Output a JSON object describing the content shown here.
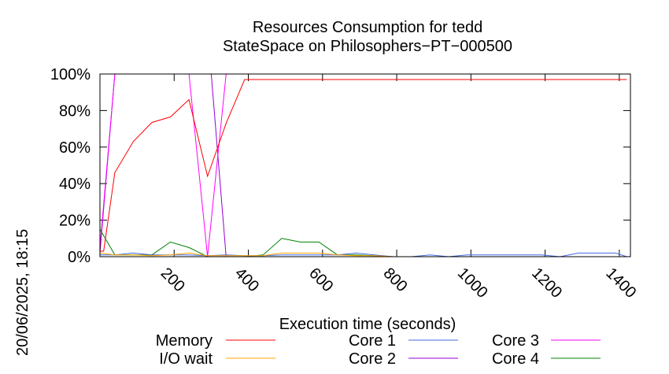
{
  "chart_data": {
    "type": "line",
    "title": "Resources Consumption for tedd",
    "subtitle": "StateSpace on Philosophers−PT−000500",
    "xlabel": "Execution time (seconds)",
    "ylabel": "",
    "side_label": "20/06/2025, 18:15",
    "xlim": [
      0,
      1430
    ],
    "ylim": [
      0,
      100
    ],
    "x_ticks": [
      200,
      400,
      600,
      800,
      1000,
      1200,
      1400
    ],
    "y_ticks": [
      0,
      20,
      40,
      60,
      80,
      100
    ],
    "y_tick_labels": [
      "0%",
      "20%",
      "40%",
      "60%",
      "80%",
      "100%"
    ],
    "grid": false,
    "legend_position": "bottom",
    "series": [
      {
        "name": "Memory",
        "color": "#ff0000",
        "x": [
          0,
          10,
          40,
          90,
          140,
          190,
          240,
          290,
          340,
          390,
          1420
        ],
        "y": [
          3,
          3,
          46,
          63,
          73.5,
          76.5,
          86,
          44,
          73,
          97,
          97
        ]
      },
      {
        "name": "I/O wait",
        "color": "#ffa500",
        "x": [
          0,
          40,
          90,
          140,
          190,
          240,
          290,
          340,
          390,
          440,
          490,
          540,
          590,
          640,
          690,
          740,
          790,
          840,
          890,
          940,
          990,
          1040,
          1090,
          1140,
          1190,
          1240,
          1290,
          1340,
          1390,
          1420
        ],
        "y": [
          2,
          1,
          1,
          0.5,
          1,
          2,
          0.5,
          0.5,
          0.5,
          0.5,
          2,
          2,
          2,
          1,
          0.5,
          0.5,
          0,
          0,
          0,
          0,
          0,
          0,
          0,
          0,
          0,
          0,
          0,
          0,
          0,
          0
        ]
      },
      {
        "name": "Core 1",
        "color": "#4169e1",
        "x": [
          0,
          40,
          90,
          140,
          190,
          240,
          290,
          340,
          390,
          440,
          490,
          540,
          590,
          640,
          690,
          740,
          790,
          840,
          890,
          940,
          990,
          1040,
          1090,
          1140,
          1190,
          1240,
          1290,
          1340,
          1390,
          1420
        ],
        "y": [
          1,
          1,
          2,
          1,
          1,
          1,
          0.5,
          1,
          0.5,
          0.5,
          1,
          1,
          1,
          1,
          2,
          1,
          0,
          0,
          1,
          0,
          1,
          1,
          1,
          1,
          1,
          0,
          2,
          2,
          2,
          0
        ]
      },
      {
        "name": "Core 2",
        "color": "#9400d3",
        "x": [
          0,
          40,
          90,
          140,
          190,
          240,
          290,
          300,
          340,
          390,
          440,
          490,
          540,
          590,
          640,
          690,
          740,
          790,
          840,
          890,
          940,
          990,
          1040,
          1090,
          1140,
          1190,
          1240,
          1290,
          1340,
          1390,
          1420
        ],
        "y": [
          2,
          100,
          100,
          100,
          100,
          100,
          100,
          100,
          0,
          0,
          0,
          0,
          0,
          0,
          0,
          0,
          0,
          0,
          0,
          0,
          0,
          0,
          0,
          0,
          0,
          0,
          0,
          0,
          0,
          0,
          0
        ]
      },
      {
        "name": "Core 3",
        "color": "#ff00ff",
        "x": [
          0,
          40,
          90,
          140,
          190,
          240,
          290,
          340,
          390,
          1420
        ],
        "y": [
          5,
          100,
          100,
          100,
          100,
          100,
          0,
          100,
          100,
          100
        ]
      },
      {
        "name": "Core 4",
        "color": "#008000",
        "x": [
          0,
          40,
          90,
          140,
          190,
          240,
          290,
          340,
          390,
          440,
          490,
          540,
          590,
          640,
          690,
          740,
          790,
          840,
          890,
          940,
          990,
          1040,
          1090,
          1140,
          1190,
          1240,
          1290,
          1340,
          1390,
          1420
        ],
        "y": [
          15,
          1,
          1,
          1,
          8,
          5,
          0,
          0,
          0,
          1,
          10,
          8,
          8,
          1,
          1,
          0.5,
          0,
          0,
          0,
          0,
          0,
          0,
          0,
          0,
          0,
          0,
          0,
          0,
          0,
          0
        ]
      }
    ]
  }
}
